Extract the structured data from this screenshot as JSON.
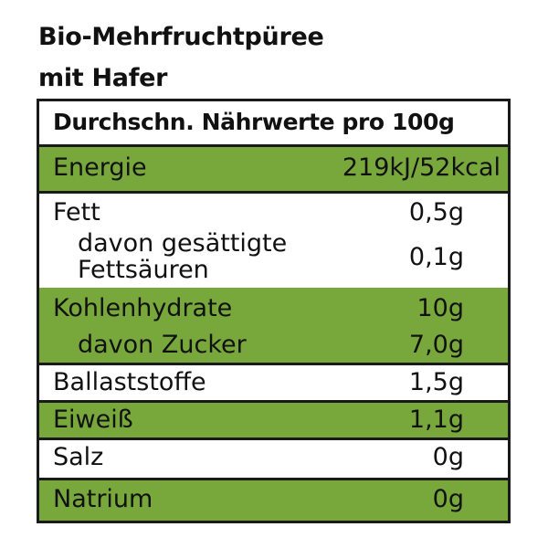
{
  "product": {
    "title_line1": "Bio-Mehrfruchtpüree",
    "title_line2": "mit Hafer"
  },
  "table": {
    "header": "Durchschn. Nährwerte pro 100g",
    "rows": [
      {
        "label": "Energie",
        "value": "219kJ/52kcal",
        "highlight": true
      },
      {
        "label": "Fett",
        "value": "0,5g",
        "highlight": false
      },
      {
        "label_line1": "davon gesättigte",
        "label_line2": "Fettsäuren",
        "value": "0,1g",
        "highlight": false
      },
      {
        "label": "Kohlenhydrate",
        "value": "10g",
        "highlight": true
      },
      {
        "label": "davon Zucker",
        "value": "7,0g",
        "highlight": true
      },
      {
        "label": "Ballaststoffe",
        "value": "1,5g",
        "highlight": false
      },
      {
        "label": "Eiweiß",
        "value": "1,1g",
        "highlight": true
      },
      {
        "label": "Salz",
        "value": "0g",
        "highlight": false
      },
      {
        "label": "Natrium",
        "value": "0g",
        "highlight": true
      }
    ]
  },
  "colors": {
    "highlight_green": "#78a83c",
    "border": "#1a1a1a"
  }
}
